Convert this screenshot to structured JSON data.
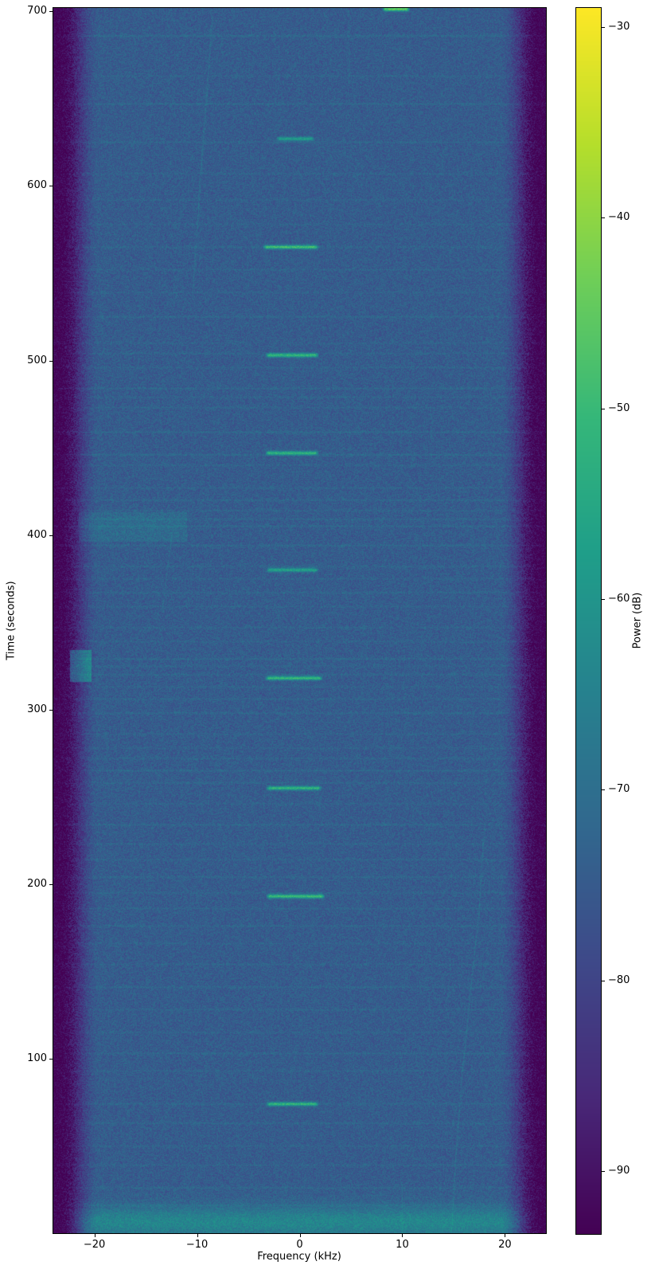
{
  "chart_data": {
    "type": "heatmap",
    "subtype": "spectrogram",
    "title": "",
    "xlabel": "Frequency (kHz)",
    "ylabel": "Time (seconds)",
    "colorbar_label": "Power (dB)",
    "xlim": [
      -24,
      24
    ],
    "ylim": [
      0,
      702
    ],
    "x_ticks": [
      -20,
      -10,
      0,
      10,
      20
    ],
    "x_tick_labels": [
      "−20",
      "−10",
      "0",
      "10",
      "20"
    ],
    "y_ticks": [
      700,
      600,
      500,
      400,
      300,
      200,
      100
    ],
    "y_tick_labels": [
      "700",
      "600",
      "500",
      "400",
      "300",
      "200",
      "100"
    ],
    "colorbar_ticks": [
      -30,
      -40,
      -50,
      -60,
      -70,
      -80,
      -90
    ],
    "colorbar_tick_labels": [
      "−30",
      "−40",
      "−50",
      "−60",
      "−70",
      "−80",
      "−90"
    ],
    "power_range_db": [
      -93.3,
      -29
    ],
    "colormap": "viridis",
    "viridis_stops": [
      "#440154",
      "#482878",
      "#3e4989",
      "#31688e",
      "#26828e",
      "#1f9e89",
      "#35b779",
      "#6ece58",
      "#b5de2b",
      "#fde725"
    ],
    "background_power_db": -74.5,
    "edge_power_db": -94,
    "edge_flat_khz": 19.5,
    "edge_dark_khz": 23.5,
    "noise_amplitude_db": 4.5,
    "bottom_band": {
      "center_time": 6.5,
      "sigma": 8,
      "peak_boost_db": 9,
      "taper_time": 30,
      "taper_boost_db": 2.3
    },
    "pulses": [
      {
        "time": 701.3,
        "f_start": 8.0,
        "f_end": 10.8,
        "peak_db": -44
      },
      {
        "time": 627,
        "f_start": -2.3,
        "f_end": 1.5,
        "peak_db": -57
      },
      {
        "time": 565,
        "f_start": -3.6,
        "f_end": 1.9,
        "peak_db": -50
      },
      {
        "time": 503,
        "f_start": -3.4,
        "f_end": 1.9,
        "peak_db": -51
      },
      {
        "time": 447,
        "f_start": -3.4,
        "f_end": 1.9,
        "peak_db": -52
      },
      {
        "time": 380,
        "f_start": -3.3,
        "f_end": 1.9,
        "peak_db": -56
      },
      {
        "time": 318,
        "f_start": -3.4,
        "f_end": 2.3,
        "peak_db": -50
      },
      {
        "time": 255,
        "f_start": -3.3,
        "f_end": 2.2,
        "peak_db": -51
      },
      {
        "time": 193,
        "f_start": -3.3,
        "f_end": 2.5,
        "peak_db": -49
      },
      {
        "time": 74,
        "f_start": -3.3,
        "f_end": 1.9,
        "peak_db": -53
      }
    ],
    "interference_lines": [
      [
        686,
        3.5
      ],
      [
        663,
        2
      ],
      [
        647,
        3
      ],
      [
        625,
        2.5
      ],
      [
        607,
        2
      ],
      [
        592,
        1.8
      ],
      [
        578,
        1.8
      ],
      [
        565,
        2.5
      ],
      [
        552,
        2
      ],
      [
        539,
        2
      ],
      [
        525,
        3
      ],
      [
        510,
        1.8
      ],
      [
        504,
        2.2
      ],
      [
        496,
        2
      ],
      [
        484,
        3
      ],
      [
        479,
        2
      ],
      [
        473,
        2.2
      ],
      [
        459,
        3.2
      ],
      [
        446,
        3.5
      ],
      [
        440,
        2.2
      ],
      [
        427,
        2
      ],
      [
        420,
        2.8
      ],
      [
        414,
        2.2
      ],
      [
        409,
        2.5
      ],
      [
        405,
        3
      ],
      [
        394,
        3.2
      ],
      [
        382,
        2.5
      ],
      [
        375,
        2
      ],
      [
        367,
        2.8
      ],
      [
        359,
        2
      ],
      [
        347,
        2.2
      ],
      [
        339,
        2
      ],
      [
        329,
        3
      ],
      [
        325,
        2
      ],
      [
        320,
        2.5
      ],
      [
        313,
        2
      ],
      [
        306,
        2.2
      ],
      [
        298,
        3
      ],
      [
        286,
        2
      ],
      [
        278,
        2
      ],
      [
        272,
        2.2
      ],
      [
        265,
        3
      ],
      [
        258,
        2.4
      ],
      [
        246,
        2
      ],
      [
        234,
        2.8
      ],
      [
        223,
        2
      ],
      [
        214,
        2.2
      ],
      [
        204,
        2.8
      ],
      [
        195,
        2.4
      ],
      [
        186,
        2
      ],
      [
        176,
        2.8
      ],
      [
        166,
        2
      ],
      [
        154,
        2.2
      ],
      [
        141,
        3
      ],
      [
        128,
        2
      ],
      [
        115,
        2.2
      ],
      [
        103,
        2.8
      ],
      [
        93,
        2
      ],
      [
        74,
        2.4
      ],
      [
        63,
        2.8
      ],
      [
        50,
        2
      ],
      [
        39,
        2.2
      ],
      [
        26,
        2.8
      ],
      [
        16,
        2.2
      ]
    ],
    "traces": [
      {
        "name": "drift-upper-left",
        "boost_db": 4,
        "points": [
          [
            -8.5,
            697
          ],
          [
            -9.0,
            655
          ],
          [
            -9.6,
            610
          ],
          [
            -10.1,
            565
          ],
          [
            -10.4,
            540
          ]
        ]
      },
      {
        "name": "drift-left-mid",
        "boost_db": 3.5,
        "points": [
          [
            -12.4,
            402
          ],
          [
            -12.9,
            380
          ],
          [
            -13.4,
            357
          ]
        ]
      },
      {
        "name": "drift-lower-right",
        "boost_db": 4,
        "points": [
          [
            18.0,
            232
          ],
          [
            17.5,
            185
          ],
          [
            16.6,
            135
          ],
          [
            15.8,
            88
          ],
          [
            15.2,
            42
          ],
          [
            14.8,
            0
          ]
        ]
      },
      {
        "name": "vertical-faint-top",
        "boost_db": 2.5,
        "points": [
          [
            4.8,
            700
          ],
          [
            4.8,
            658
          ]
        ]
      },
      {
        "name": "vertical-faint-bottom",
        "boost_db": 3,
        "points": [
          [
            10.0,
            28
          ],
          [
            10.0,
            0
          ]
        ]
      }
    ],
    "patches": [
      {
        "f_start": -21.5,
        "f_end": -11.0,
        "t_start": 396,
        "t_end": 413,
        "boost_db": 3.5
      },
      {
        "f_start": -22.4,
        "f_end": -20.3,
        "t_start": 316,
        "t_end": 334,
        "boost_db": 13
      }
    ]
  }
}
